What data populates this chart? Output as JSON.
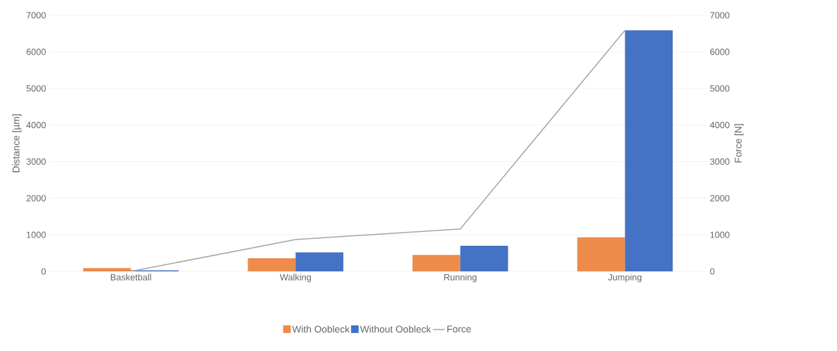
{
  "chart_data": {
    "type": "bar",
    "ylabel": "Distance [µm]",
    "y2label": "Force [N]",
    "categories": [
      "Basketball",
      "Walking",
      "Running",
      "Jumping"
    ],
    "series": [
      {
        "name": "With Oobleck",
        "color": "#ed8c4b",
        "values": [
          90,
          360,
          450,
          930
        ]
      },
      {
        "name": "Without Oobleck",
        "color": "#4472c4",
        "values": [
          30,
          520,
          700,
          6590
        ]
      },
      {
        "name": "Force",
        "type": "line",
        "axis": "y2",
        "color": "#a5a5a5",
        "values": [
          0,
          870,
          1160,
          6590
        ]
      }
    ],
    "ylim": [
      0,
      7000
    ],
    "yticks": [
      0,
      1000,
      2000,
      3000,
      4000,
      5000,
      6000,
      7000
    ],
    "y2lim": [
      0,
      7000
    ],
    "y2ticks": [
      0,
      1000,
      2000,
      3000,
      4000,
      5000,
      6000,
      7000
    ],
    "grid": "y",
    "legend": "bottom"
  }
}
